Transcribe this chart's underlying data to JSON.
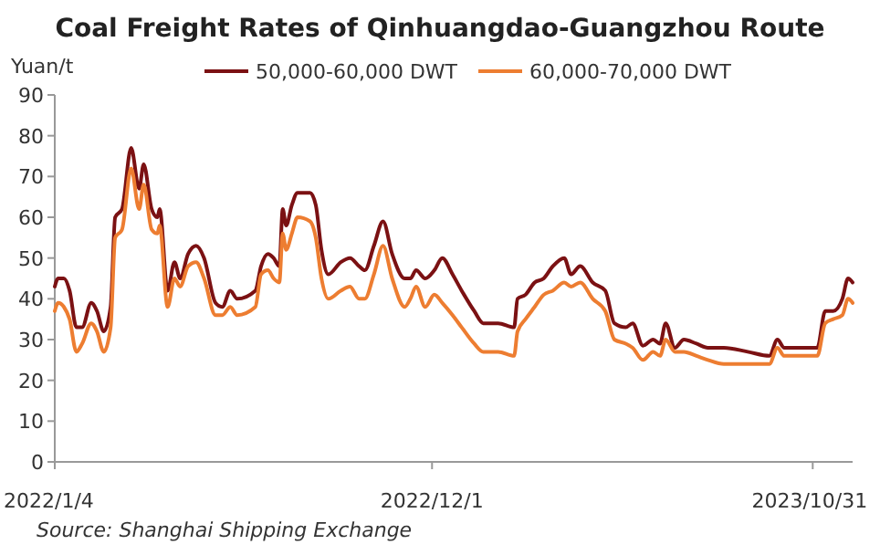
{
  "chart_data": {
    "type": "line",
    "title": "Coal Freight Rates of Qinhuangdao-Guangzhou  Route",
    "ylabel": "Yuan/t",
    "annotations": [
      "Source:  Shanghai Shipping Exchange"
    ],
    "x": [
      "2022-01-04",
      "2022-01-07",
      "2022-01-12",
      "2022-01-17",
      "2022-01-23",
      "2022-01-28",
      "2022-02-05",
      "2022-02-10",
      "2022-02-16",
      "2022-02-22",
      "2022-02-26",
      "2022-03-04",
      "2022-03-12",
      "2022-03-19",
      "2022-03-23",
      "2022-03-30",
      "2022-04-04",
      "2022-04-06",
      "2022-04-13",
      "2022-04-19",
      "2022-04-24",
      "2022-05-01",
      "2022-05-08",
      "2022-05-15",
      "2022-05-25",
      "2022-05-31",
      "2022-06-07",
      "2022-06-13",
      "2022-06-29",
      "2022-07-04",
      "2022-07-10",
      "2022-07-15",
      "2022-07-20",
      "2022-07-23",
      "2022-07-26",
      "2022-07-31",
      "2022-08-05",
      "2022-08-16",
      "2022-08-21",
      "2022-08-26",
      "2022-09-01",
      "2022-09-12",
      "2022-09-20",
      "2022-09-28",
      "2022-10-03",
      "2022-10-11",
      "2022-10-19",
      "2022-10-27",
      "2022-11-07",
      "2022-11-12",
      "2022-11-17",
      "2022-11-25",
      "2022-12-03",
      "2022-12-10",
      "2022-12-19",
      "2022-12-27",
      "2023-01-07",
      "2023-01-15",
      "2023-01-28",
      "2023-02-11",
      "2023-02-14",
      "2023-02-21",
      "2023-03-01",
      "2023-03-09",
      "2023-03-17",
      "2023-03-27",
      "2023-04-02",
      "2023-04-10",
      "2023-04-21",
      "2023-05-02",
      "2023-05-10",
      "2023-05-20",
      "2023-05-26",
      "2023-06-04",
      "2023-06-13",
      "2023-06-19",
      "2023-06-24",
      "2023-07-02",
      "2023-07-10",
      "2023-07-21",
      "2023-07-31",
      "2023-08-14",
      "2023-09-04",
      "2023-09-23",
      "2023-09-30",
      "2023-10-06",
      "2023-10-17",
      "2023-11-04",
      "2023-11-11",
      "2023-11-18",
      "2023-11-26",
      "2023-12-01",
      "2023-12-05"
    ],
    "series": [
      {
        "name": "50,000-60,000 DWT",
        "color": "#7b1113",
        "values": [
          43,
          45,
          45,
          42,
          33,
          33,
          39,
          37,
          32,
          38,
          60,
          62,
          77,
          67,
          73,
          62,
          60,
          62,
          42,
          49,
          45,
          51,
          53,
          50,
          39,
          38,
          42,
          40,
          42,
          48,
          51,
          50,
          48,
          62,
          58,
          63,
          66,
          66,
          63,
          52,
          46,
          49,
          50,
          48,
          47,
          53,
          59,
          51,
          45,
          45,
          47,
          45,
          47,
          50,
          46,
          42,
          37,
          34,
          34,
          33,
          40,
          41,
          44,
          45,
          48,
          50,
          46,
          48,
          44,
          42,
          34,
          33,
          34,
          28.5,
          30,
          29,
          34,
          28,
          30,
          29,
          28,
          28,
          27,
          26,
          30,
          28,
          28,
          28,
          37,
          37,
          40,
          45,
          44
        ]
      },
      {
        "name": "60,000-70,000 DWT",
        "color": "#ed7d31",
        "values": [
          37,
          39,
          38,
          35,
          27,
          29,
          34,
          32,
          27,
          33,
          55,
          57,
          72,
          62,
          68,
          57,
          56,
          58,
          38,
          45,
          43,
          48,
          49,
          45,
          36,
          36,
          38,
          36,
          38,
          46,
          47,
          45,
          44,
          56,
          52,
          56,
          60,
          59,
          55,
          45,
          40,
          42,
          43,
          40,
          40,
          46,
          53,
          45,
          38,
          40,
          43,
          38,
          41,
          39,
          36,
          33,
          29,
          27,
          27,
          26,
          32,
          35,
          38,
          41,
          42,
          44,
          43,
          44,
          40,
          37,
          30,
          29,
          28,
          25,
          27,
          26,
          30,
          27,
          27,
          26,
          25,
          24,
          24,
          24,
          28,
          26,
          26,
          26,
          34,
          35,
          36,
          40,
          39
        ]
      }
    ],
    "xlim": [
      "2022-01-04",
      "2023-12-05"
    ],
    "xticks": [
      {
        "value": "2022-01-04",
        "label": "2022/1/4"
      },
      {
        "value": "2022-12-01",
        "label": "2022/12/1"
      },
      {
        "value": "2023-10-31",
        "label": "2023/10/31"
      }
    ],
    "ylim": [
      0,
      90
    ],
    "yticks": [
      0,
      10,
      20,
      30,
      40,
      50,
      60,
      70,
      80,
      90
    ],
    "grid": false,
    "legend": "top",
    "marker": "none",
    "line_style": "solid"
  }
}
